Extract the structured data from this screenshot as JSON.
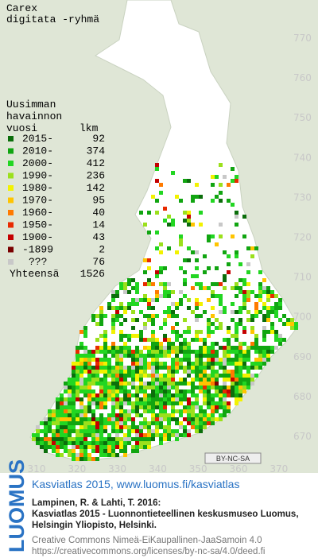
{
  "title": [
    "Carex",
    "digitata -ryhmä"
  ],
  "legend": {
    "header": [
      "Uusimman",
      "havainnon",
      "vuosi"
    ],
    "count_header": "lkm",
    "rows": [
      {
        "label": "2015-",
        "count": 92,
        "color": "#0b6e0b"
      },
      {
        "label": "2010-",
        "count": 374,
        "color": "#11a511"
      },
      {
        "label": "2000-",
        "count": 412,
        "color": "#22d622"
      },
      {
        "label": "1990-",
        "count": 236,
        "color": "#9be01c"
      },
      {
        "label": "1980-",
        "count": 142,
        "color": "#f2f200"
      },
      {
        "label": "1970-",
        "count": 95,
        "color": "#ffc400"
      },
      {
        "label": "1960-",
        "count": 40,
        "color": "#ff7a00"
      },
      {
        "label": "1950-",
        "count": 14,
        "color": "#e82a00"
      },
      {
        "label": "1900-",
        "count": 43,
        "color": "#c40000"
      },
      {
        "label": "-1899",
        "count": 2,
        "color": "#7a0000"
      },
      {
        "label": "???",
        "count": 76,
        "color": "#c8c8c8"
      }
    ],
    "total_label": "Yhteensä",
    "total": 1526
  },
  "y_labels": [
    770,
    760,
    750,
    740,
    730,
    720,
    710,
    700,
    690,
    680,
    670
  ],
  "x_labels": [
    310,
    320,
    330,
    340,
    350,
    360,
    370
  ],
  "license_badge": "BY-NC-SA",
  "footer": {
    "logo": "LUOMUS",
    "heading": "Kasviatlas 2015, www.luomus.fi/kasviatlas",
    "citation": [
      "Lampinen, R. & Lahti, T. 2016:",
      "Kasviatlas 2015 - Luonnontieteellinen keskusmuseo Luomus,",
      "Helsingin Yliopisto, Helsinki."
    ],
    "license": [
      "Creative Commons Nimeä-EiKaupallinen-JaaSamoin 4.0",
      "https://creativecommons.org/licenses/by-nc-sa/4.0/deed.fi"
    ]
  }
}
